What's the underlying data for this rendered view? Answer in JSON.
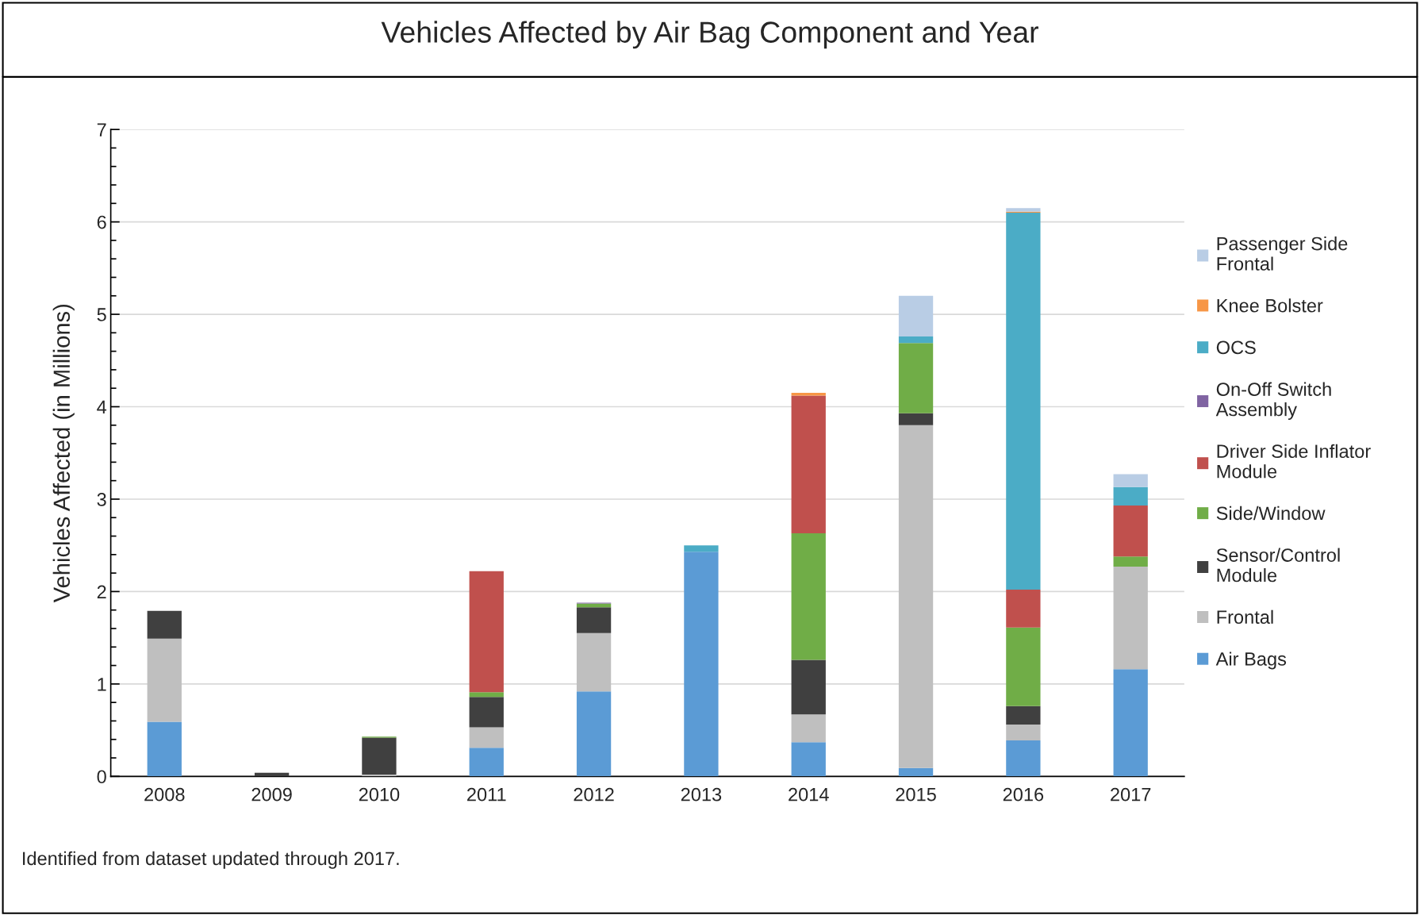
{
  "chart_data": {
    "type": "bar",
    "title": "Vehicles Affected by Air Bag Component and Year",
    "ylabel": "Vehicles Affected (in Millions)",
    "categories": [
      "2008",
      "2009",
      "2010",
      "2011",
      "2012",
      "2013",
      "2014",
      "2015",
      "2016",
      "2017"
    ],
    "stacked": true,
    "ylim": [
      0,
      7
    ],
    "yticks": [
      0,
      1,
      2,
      3,
      4,
      5,
      6,
      7
    ],
    "grid": "y",
    "legend": "right",
    "series": [
      {
        "name": "Air Bags",
        "color": "#5b9bd5",
        "values": [
          0.59,
          0,
          0,
          0.31,
          0.92,
          2.43,
          0.37,
          0.09,
          0.39,
          1.16
        ]
      },
      {
        "name": "Frontal",
        "color": "#bfbfbf",
        "values": [
          0.9,
          0,
          0.02,
          0.22,
          0.63,
          0,
          0.3,
          3.71,
          0.17,
          1.11
        ]
      },
      {
        "name": "Sensor/Control\nModule",
        "color": "#404040",
        "values": [
          0.3,
          0.04,
          0.4,
          0.33,
          0.28,
          0,
          0.59,
          0.13,
          0.2,
          0
        ]
      },
      {
        "name": "Side/Window",
        "color": "#70ad47",
        "values": [
          0,
          0,
          0.01,
          0.05,
          0.04,
          0,
          1.37,
          0.76,
          0.85,
          0.11
        ]
      },
      {
        "name": "Driver Side Inflator\nModule",
        "color": "#c0504d",
        "values": [
          0,
          0,
          0,
          1.31,
          0,
          0,
          1.49,
          0,
          0.41,
          0.55
        ]
      },
      {
        "name": "On-Off Switch\nAssembly",
        "color": "#8064a2",
        "values": [
          0,
          0,
          0,
          0,
          0.01,
          0,
          0,
          0,
          0,
          0
        ]
      },
      {
        "name": "OCS",
        "color": "#4bacc6",
        "values": [
          0,
          0,
          0,
          0,
          0,
          0.07,
          0,
          0.07,
          4.08,
          0.2
        ]
      },
      {
        "name": "Knee Bolster",
        "color": "#f79646",
        "values": [
          0,
          0,
          0,
          0,
          0,
          0,
          0.03,
          0,
          0.01,
          0
        ]
      },
      {
        "name": "Passenger Side\nFrontal",
        "color": "#b9cde5",
        "values": [
          0,
          0,
          0,
          0,
          0,
          0,
          0,
          0.44,
          0.04,
          0.14
        ]
      }
    ],
    "annotations": [
      "Identified from dataset updated through 2017."
    ]
  }
}
